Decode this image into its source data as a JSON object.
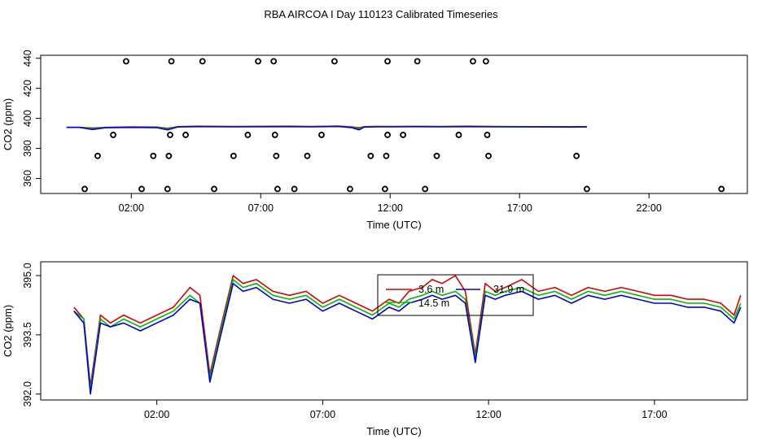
{
  "title": "RBA AIRCOA I  Day 110123  Calibrated Timeseries",
  "colors": {
    "red": "#dd0000",
    "green": "#00bb00",
    "blue": "#0000dd",
    "black": "#000000"
  },
  "chart_data": [
    {
      "type": "scatter",
      "name": "top-panel",
      "xlabel": "Time (UTC)",
      "ylabel": "CO2 (ppm)",
      "xlim": [
        -1.5,
        25.8
      ],
      "ylim": [
        350,
        442
      ],
      "x_ticks": [
        2,
        7,
        12,
        17,
        22
      ],
      "x_tick_labels": [
        "02:00",
        "07:00",
        "12:00",
        "17:00",
        "22:00"
      ],
      "y_ticks": [
        360,
        380,
        400,
        420,
        440
      ],
      "y_tick_labels": [
        "360",
        "380",
        "400",
        "420",
        "440"
      ],
      "points": [
        [
          1.8,
          438
        ],
        [
          3.55,
          438
        ],
        [
          4.75,
          438
        ],
        [
          6.9,
          438
        ],
        [
          7.5,
          438
        ],
        [
          9.85,
          438
        ],
        [
          11.9,
          438
        ],
        [
          13.05,
          438
        ],
        [
          15.2,
          438
        ],
        [
          15.7,
          438
        ],
        [
          1.3,
          389
        ],
        [
          3.5,
          389
        ],
        [
          4.1,
          389
        ],
        [
          6.5,
          389
        ],
        [
          7.55,
          389
        ],
        [
          9.35,
          389
        ],
        [
          11.9,
          389
        ],
        [
          12.5,
          389
        ],
        [
          14.65,
          389
        ],
        [
          15.75,
          389
        ],
        [
          0.7,
          375
        ],
        [
          2.85,
          375
        ],
        [
          3.45,
          375
        ],
        [
          5.95,
          375
        ],
        [
          7.6,
          375
        ],
        [
          8.8,
          375
        ],
        [
          11.25,
          375
        ],
        [
          11.85,
          375
        ],
        [
          13.8,
          375
        ],
        [
          15.8,
          375
        ],
        [
          19.2,
          375
        ],
        [
          0.2,
          353
        ],
        [
          2.4,
          353
        ],
        [
          3.4,
          353
        ],
        [
          5.2,
          353
        ],
        [
          7.65,
          353
        ],
        [
          8.3,
          353
        ],
        [
          10.45,
          353
        ],
        [
          11.8,
          353
        ],
        [
          13.35,
          353
        ],
        [
          19.6,
          353
        ],
        [
          24.8,
          353
        ]
      ],
      "series": [
        {
          "name": "3.6 m",
          "color": "#dd0000",
          "x": [
            -0.5,
            0,
            0.5,
            1,
            2,
            3,
            3.4,
            3.8,
            4.5,
            6,
            8,
            9,
            10,
            10.5,
            10.8,
            11,
            11.5,
            12,
            13,
            14,
            15,
            16,
            17,
            18,
            19,
            19.6
          ],
          "y": [
            394,
            394,
            393.6,
            394,
            394.3,
            394.2,
            393.4,
            394.5,
            394.8,
            394.6,
            394.8,
            394.6,
            394.9,
            394.3,
            393.8,
            394.5,
            394.7,
            394.6,
            394.7,
            394.6,
            394.8,
            394.6,
            394.5,
            394.4,
            394.5,
            394.5
          ]
        },
        {
          "name": "14.5 m",
          "color": "#00bb00",
          "x": [
            -0.5,
            0,
            0.5,
            1,
            2,
            3,
            3.4,
            3.8,
            4.5,
            6,
            8,
            9,
            10,
            10.5,
            10.8,
            11,
            11.5,
            12,
            13,
            14,
            15,
            16,
            17,
            18,
            19,
            19.6
          ],
          "y": [
            394,
            394,
            393.2,
            393.9,
            394.1,
            394,
            393.1,
            394.4,
            394.6,
            394.5,
            394.6,
            394.5,
            394.7,
            394.1,
            393.2,
            394.3,
            394.5,
            394.5,
            394.6,
            394.5,
            394.6,
            394.5,
            394.4,
            394.3,
            394.3,
            394.4
          ]
        },
        {
          "name": "31.9 m",
          "color": "#0000dd",
          "x": [
            -0.5,
            0,
            0.5,
            1,
            2,
            3,
            3.4,
            3.8,
            4.5,
            6,
            8,
            9,
            10,
            10.5,
            10.8,
            11,
            11.5,
            12,
            13,
            14,
            15,
            16,
            17,
            18,
            19,
            19.6
          ],
          "y": [
            394,
            394,
            392.6,
            393.8,
            394,
            393.8,
            392.4,
            394.3,
            394.5,
            394.4,
            394.5,
            394.4,
            394.6,
            393.9,
            392.4,
            394.2,
            394.4,
            394.4,
            394.5,
            394.4,
            394.5,
            394.4,
            394.4,
            394.3,
            394.2,
            394.3
          ]
        }
      ]
    },
    {
      "type": "line",
      "name": "bottom-panel",
      "xlabel": "Time (UTC)",
      "ylabel": "CO2 (ppm)",
      "xlim": [
        -1.5,
        19.8
      ],
      "ylim": [
        391.85,
        395.35
      ],
      "x_ticks": [
        2,
        7,
        12,
        17
      ],
      "x_tick_labels": [
        "02:00",
        "07:00",
        "12:00",
        "17:00"
      ],
      "y_ticks": [
        392.0,
        393.5,
        395.0
      ],
      "y_tick_labels": [
        "392.0",
        "393.5",
        "395.0"
      ],
      "legend": {
        "entries": [
          "3.6 m",
          "14.5 m",
          "31.9 m"
        ],
        "colors": [
          "#dd0000",
          "#00bb00",
          "#0000dd"
        ],
        "placement": "center"
      },
      "series": [
        {
          "name": "3.6 m",
          "color": "#dd0000",
          "x": [
            -0.5,
            -0.2,
            0,
            0.3,
            0.6,
            1,
            1.5,
            2,
            2.5,
            3,
            3.3,
            3.6,
            3.9,
            4.3,
            4.6,
            5,
            5.5,
            6,
            6.5,
            7,
            7.5,
            8,
            8.5,
            9,
            9.3,
            9.6,
            10,
            10.3,
            10.6,
            11,
            11.3,
            11.6,
            11.9,
            12.2,
            12.5,
            13,
            13.5,
            14,
            14.5,
            15,
            15.5,
            16,
            16.5,
            17,
            17.5,
            18,
            18.5,
            19,
            19.4,
            19.6
          ],
          "y": [
            394.2,
            393.9,
            392.2,
            394.0,
            393.8,
            394.0,
            393.8,
            394.0,
            394.2,
            394.7,
            394.5,
            392.5,
            393.6,
            395.0,
            394.8,
            394.9,
            394.6,
            394.5,
            394.6,
            394.3,
            394.5,
            394.3,
            394.1,
            394.4,
            394.3,
            394.6,
            394.7,
            394.9,
            394.8,
            395.0,
            394.6,
            393.0,
            394.8,
            394.6,
            394.7,
            394.9,
            394.6,
            394.7,
            394.5,
            394.7,
            394.6,
            394.7,
            394.6,
            394.5,
            394.5,
            394.4,
            394.4,
            394.3,
            394.0,
            394.5
          ]
        },
        {
          "name": "14.5 m",
          "color": "#00bb00",
          "x": [
            -0.5,
            -0.2,
            0,
            0.3,
            0.6,
            1,
            1.5,
            2,
            2.5,
            3,
            3.3,
            3.6,
            3.9,
            4.3,
            4.6,
            5,
            5.5,
            6,
            6.5,
            7,
            7.5,
            8,
            8.5,
            9,
            9.3,
            9.6,
            10,
            10.3,
            10.6,
            11,
            11.3,
            11.6,
            11.9,
            12.2,
            12.5,
            13,
            13.5,
            14,
            14.5,
            15,
            15.5,
            16,
            16.5,
            17,
            17.5,
            18,
            18.5,
            19,
            19.4,
            19.6
          ],
          "y": [
            394.1,
            393.9,
            392.1,
            393.9,
            393.7,
            393.9,
            393.7,
            393.9,
            394.1,
            394.5,
            394.3,
            392.4,
            393.5,
            394.9,
            394.7,
            394.8,
            394.5,
            394.4,
            394.5,
            394.2,
            394.4,
            394.2,
            394.0,
            394.3,
            394.2,
            394.4,
            394.5,
            394.6,
            394.5,
            394.6,
            394.4,
            392.9,
            394.6,
            394.5,
            394.6,
            394.7,
            394.5,
            394.6,
            394.4,
            394.6,
            394.5,
            394.6,
            394.5,
            394.4,
            394.4,
            394.3,
            394.3,
            394.2,
            393.9,
            394.3
          ]
        },
        {
          "name": "31.9 m",
          "color": "#0000dd",
          "x": [
            -0.5,
            -0.2,
            0,
            0.3,
            0.6,
            1,
            1.5,
            2,
            2.5,
            3,
            3.3,
            3.6,
            3.9,
            4.3,
            4.6,
            5,
            5.5,
            6,
            6.5,
            7,
            7.5,
            8,
            8.5,
            9,
            9.3,
            9.6,
            10,
            10.3,
            10.6,
            11,
            11.3,
            11.6,
            11.9,
            12.2,
            12.5,
            13,
            13.5,
            14,
            14.5,
            15,
            15.5,
            16,
            16.5,
            17,
            17.5,
            18,
            18.5,
            19,
            19.4,
            19.6
          ],
          "y": [
            394.1,
            393.8,
            392.0,
            393.8,
            393.7,
            393.8,
            393.6,
            393.8,
            394.0,
            394.4,
            394.3,
            392.3,
            393.4,
            394.8,
            394.6,
            394.7,
            394.4,
            394.3,
            394.4,
            394.1,
            394.3,
            394.1,
            393.9,
            394.2,
            394.1,
            394.3,
            394.4,
            394.5,
            394.4,
            394.5,
            394.3,
            392.8,
            394.5,
            394.4,
            394.5,
            394.6,
            394.4,
            394.5,
            394.3,
            394.5,
            394.4,
            394.5,
            394.4,
            394.3,
            394.3,
            394.2,
            394.2,
            394.1,
            393.8,
            394.2
          ]
        }
      ]
    }
  ]
}
